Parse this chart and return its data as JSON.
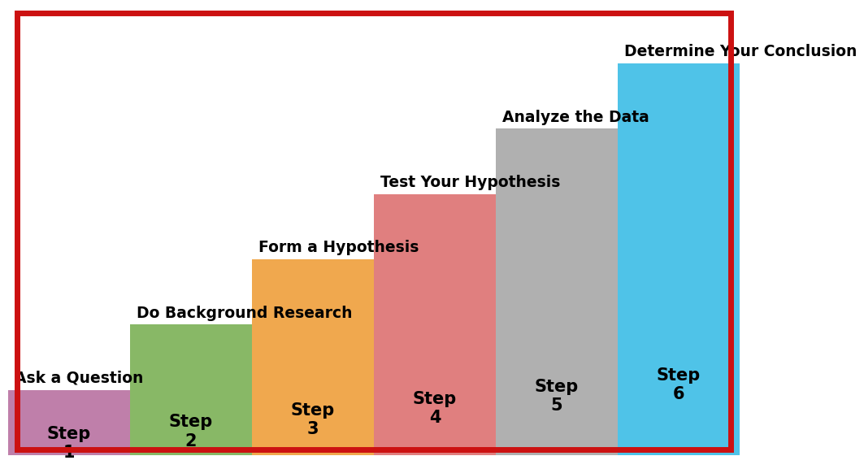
{
  "steps": [
    {
      "number": 1,
      "label": "Step\n1",
      "title": "Ask a Question",
      "color": "#bf7faa",
      "height": 1
    },
    {
      "number": 2,
      "label": "Step\n2",
      "title": "Do Background Research",
      "color": "#88b866",
      "height": 2
    },
    {
      "number": 3,
      "label": "Step\n3",
      "title": "Form a Hypothesis",
      "color": "#f0a84e",
      "height": 3
    },
    {
      "number": 4,
      "label": "Step\n4",
      "title": "Test Your Hypothesis",
      "color": "#e07f7f",
      "height": 4
    },
    {
      "number": 5,
      "label": "Step\n5",
      "title": "Analyze the Data",
      "color": "#b0b0b0",
      "height": 5
    },
    {
      "number": 6,
      "label": "Step\n6",
      "title": "Determine Your Conclusion",
      "color": "#4fc3e8",
      "height": 6
    }
  ],
  "n_bars": 6,
  "background_color": "#ffffff",
  "border_color": "#cc1111",
  "border_linewidth": 5,
  "title_fontsize": 13.5,
  "step_label_fontsize": 15,
  "ylim": [
    0,
    6.85
  ],
  "xlim": [
    0,
    6
  ]
}
